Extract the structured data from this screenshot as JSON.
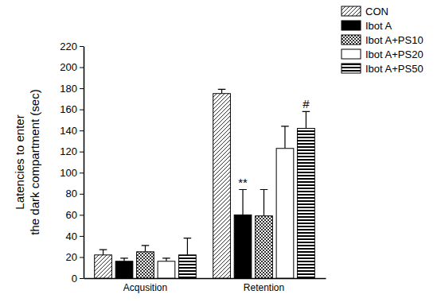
{
  "chart_data": {
    "type": "bar",
    "ylabel": [
      "Latencies to enter",
      "the dark compartment (sec)"
    ],
    "categories": [
      "Acqusition",
      "Retention"
    ],
    "series": [
      {
        "name": "CON",
        "color": "#333333",
        "values": [
          22,
          175
        ],
        "errors": [
          5,
          4
        ]
      },
      {
        "name": "Ibot A",
        "color": "#000000",
        "values": [
          16,
          60
        ],
        "errors": [
          3,
          24
        ],
        "annotations": [
          null,
          "**"
        ]
      },
      {
        "name": "Ibot A+PS10",
        "color": "#333333",
        "values": [
          25,
          59
        ],
        "errors": [
          6,
          25
        ]
      },
      {
        "name": "Ibot A+PS20",
        "color": "#ffffff",
        "values": [
          16,
          123
        ],
        "errors": [
          3,
          21
        ]
      },
      {
        "name": "Ibot A+PS50",
        "color": "#000000",
        "values": [
          22,
          142
        ],
        "errors": [
          16,
          16
        ],
        "annotations": [
          null,
          "#"
        ]
      }
    ],
    "ylim": [
      0,
      220
    ],
    "yticks": [
      0,
      20,
      40,
      60,
      80,
      100,
      120,
      140,
      160,
      180,
      200,
      220
    ],
    "legend": "top-right",
    "grid": false
  }
}
